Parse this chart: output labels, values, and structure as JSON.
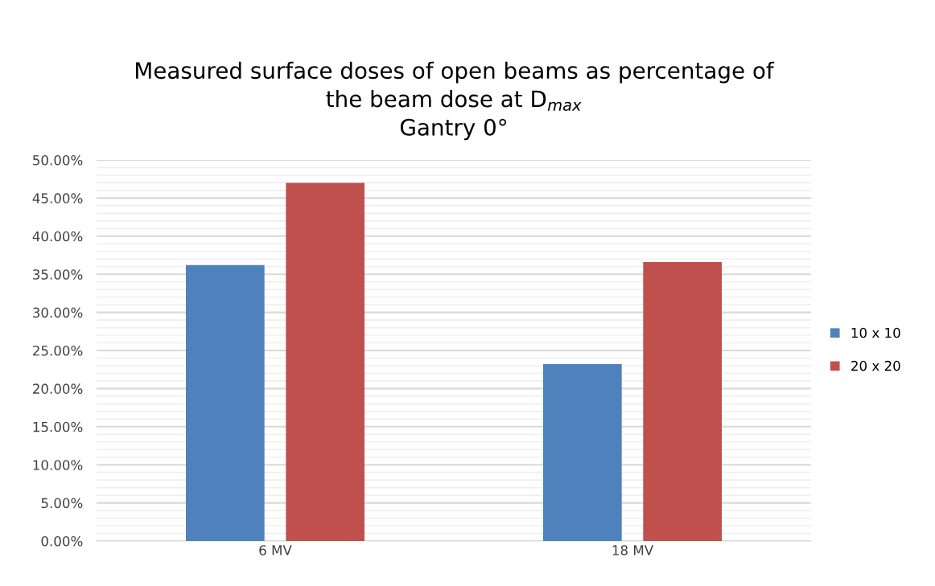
{
  "chart_data": {
    "type": "bar",
    "title": "Measured surface doses of open beams as percentage of\nthe beam dose at D$_{max}$\nGantry 0°",
    "categories": [
      "6 MV",
      "18 MV"
    ],
    "series": [
      {
        "name": "10 x 10",
        "color": "#4f81bd",
        "values": [
          36.2,
          23.2
        ]
      },
      {
        "name": "20 x 20",
        "color": "#c0504d",
        "values": [
          47.0,
          36.6
        ]
      }
    ],
    "ylim": [
      0,
      50
    ],
    "yticks": [
      {
        "value": 0,
        "label": "0.00%"
      },
      {
        "value": 5,
        "label": "5.00%"
      },
      {
        "value": 10,
        "label": "10.00%"
      },
      {
        "value": 15,
        "label": "15.00%"
      },
      {
        "value": 20,
        "label": "20.00%"
      },
      {
        "value": 25,
        "label": "25.00%"
      },
      {
        "value": 30,
        "label": "30.00%"
      },
      {
        "value": 35,
        "label": "35.00%"
      },
      {
        "value": 40,
        "label": "40.00%"
      },
      {
        "value": 45,
        "label": "45.00%"
      },
      {
        "value": 50,
        "label": "50.00%"
      }
    ],
    "grid": "y",
    "legend": "right"
  }
}
